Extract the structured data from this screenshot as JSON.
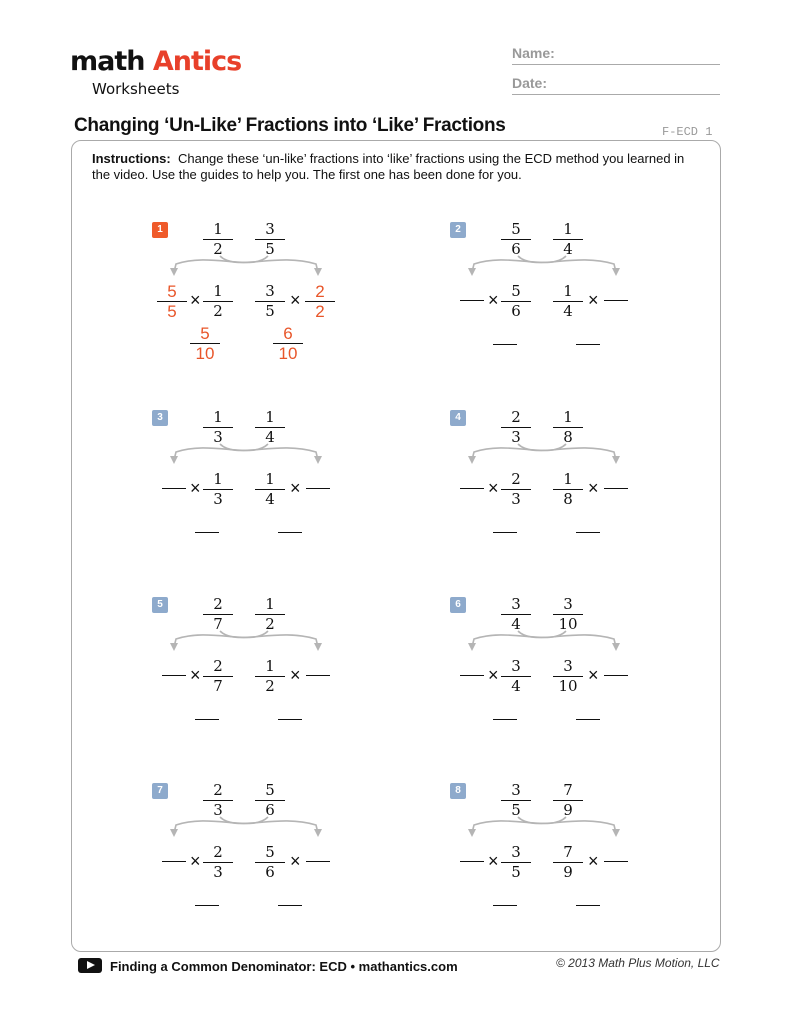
{
  "logo": {
    "math": "math",
    "antics": "Antics",
    "sub": "Worksheets"
  },
  "header": {
    "name_label": "Name:",
    "date_label": "Date:"
  },
  "title": "Changing ‘Un-Like’ Fractions into ‘Like’ Fractions",
  "code": "F-ECD 1",
  "instructions": {
    "label": "Instructions:",
    "text": "Change these ‘un-like’ fractions into ‘like’ fractions using the ECD method you learned in the video.  Use the guides to help you.  The first one has been done for you."
  },
  "colors": {
    "answer": "#e8562a",
    "badge": "#8eaacc",
    "badge_done": "#ef5a2a",
    "arrow": "#b5b5b5"
  },
  "problems": [
    {
      "num": "1",
      "a": [
        "1",
        "2"
      ],
      "b": [
        "3",
        "5"
      ],
      "left_mult": [
        "5",
        "5"
      ],
      "right_mult": [
        "2",
        "2"
      ],
      "answers": [
        [
          "5",
          "10"
        ],
        [
          "6",
          "10"
        ]
      ]
    },
    {
      "num": "2",
      "a": [
        "5",
        "6"
      ],
      "b": [
        "1",
        "4"
      ]
    },
    {
      "num": "3",
      "a": [
        "1",
        "3"
      ],
      "b": [
        "1",
        "4"
      ]
    },
    {
      "num": "4",
      "a": [
        "2",
        "3"
      ],
      "b": [
        "1",
        "8"
      ]
    },
    {
      "num": "5",
      "a": [
        "2",
        "7"
      ],
      "b": [
        "1",
        "2"
      ]
    },
    {
      "num": "6",
      "a": [
        "3",
        "4"
      ],
      "b": [
        "3",
        "10"
      ]
    },
    {
      "num": "7",
      "a": [
        "2",
        "3"
      ],
      "b": [
        "5",
        "6"
      ]
    },
    {
      "num": "8",
      "a": [
        "3",
        "5"
      ],
      "b": [
        "7",
        "9"
      ]
    }
  ],
  "times_symbol": "×",
  "footer": {
    "text": "Finding a Common Denominator: ECD • mathantics.com",
    "copyright": "© 2013 Math Plus Motion, LLC",
    "icon": "play-icon"
  }
}
